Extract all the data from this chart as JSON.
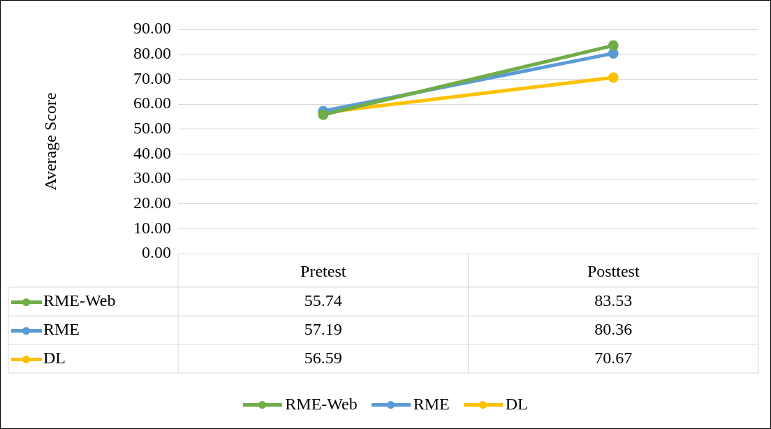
{
  "chart_data": {
    "type": "line",
    "ylabel": "Average Score",
    "categories": [
      "Pretest",
      "Posttest"
    ],
    "series": [
      {
        "name": "RME-Web",
        "color": "#70ad47",
        "values": [
          55.74,
          83.53
        ]
      },
      {
        "name": "RME",
        "color": "#5b9bd5",
        "values": [
          57.19,
          80.36
        ]
      },
      {
        "name": "DL",
        "color": "#ffc000",
        "values": [
          56.59,
          70.67
        ]
      }
    ],
    "ylim": [
      0,
      90
    ],
    "yticks": [
      {
        "value": 0,
        "label": "0.00"
      },
      {
        "value": 10,
        "label": "10.00"
      },
      {
        "value": 20,
        "label": "20.00"
      },
      {
        "value": 30,
        "label": "30.00"
      },
      {
        "value": 40,
        "label": "40.00"
      },
      {
        "value": 50,
        "label": "50.00"
      },
      {
        "value": 60,
        "label": "60.00"
      },
      {
        "value": 70,
        "label": "70.00"
      },
      {
        "value": 80,
        "label": "80.00"
      },
      {
        "value": 90,
        "label": "90.00"
      }
    ],
    "grid": "y",
    "legend": "bottom",
    "marker": "circle",
    "line_style": "solid",
    "data_labels": true
  }
}
